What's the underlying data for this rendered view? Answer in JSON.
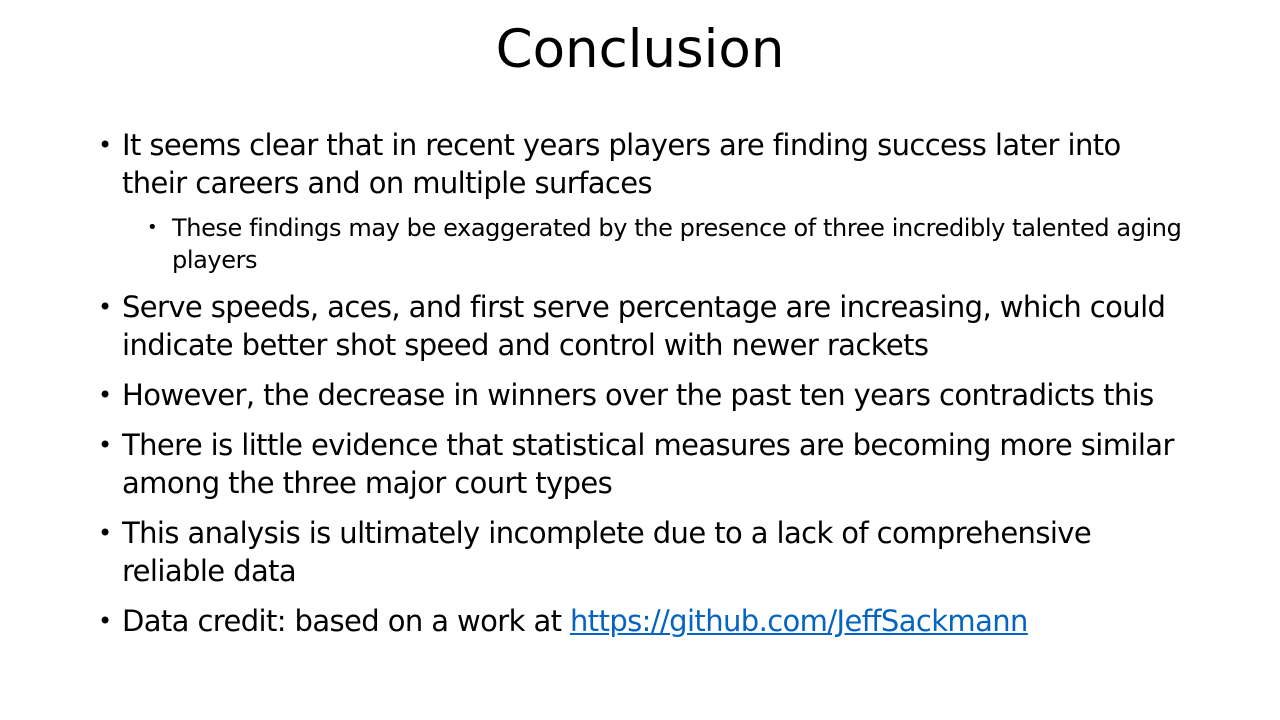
{
  "slide": {
    "title": "Conclusion",
    "bullets": [
      {
        "text": "It seems clear that in recent years players are finding success later into their careers and on multiple surfaces",
        "sub": [
          "These findings may be exaggerated by the presence of three incredibly talented aging players"
        ]
      },
      {
        "text": "Serve speeds, aces, and first serve percentage are increasing, which could indicate better shot speed and control with newer rackets"
      },
      {
        "text": "However, the decrease in winners over the past ten years contradicts this"
      },
      {
        "text": "There is little evidence that statistical measures are becoming more similar among the three major court types"
      },
      {
        "text": "This analysis is ultimately incomplete due to a lack of comprehensive reliable data"
      },
      {
        "text": "Data credit: based on a work at ",
        "link": "https://github.com/JeffSackmann"
      }
    ],
    "bullet_glyph": "•",
    "link_color": "#0563c1"
  }
}
